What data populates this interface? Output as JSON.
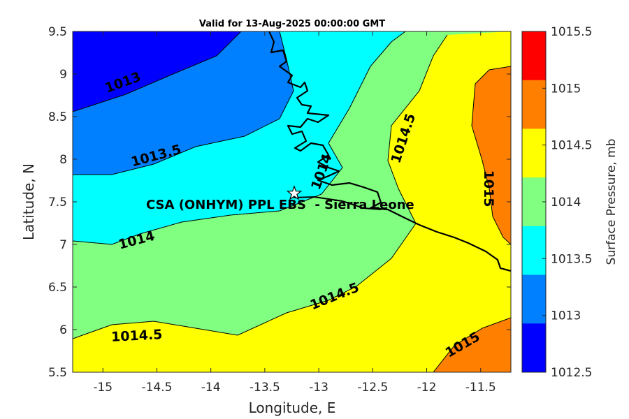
{
  "title": "Valid for 13-Aug-2025 00:00:00 GMT",
  "x_axis": {
    "label": "Longitude, E",
    "range": [
      -15.28,
      -11.22
    ],
    "ticks": [
      "-15",
      "-14.5",
      "-14",
      "-13.5",
      "-13",
      "-12.5",
      "-12",
      "-11.5"
    ],
    "tick_values": [
      -15,
      -14.5,
      -14,
      -13.5,
      -13,
      -12.5,
      -12,
      -11.5
    ]
  },
  "y_axis": {
    "label": "Latitude, N",
    "range": [
      5.5,
      9.5
    ],
    "ticks": [
      "5.5",
      "6",
      "6.5",
      "7",
      "7.5",
      "8",
      "8.5",
      "9",
      "9.5"
    ],
    "tick_values": [
      5.5,
      6,
      6.5,
      7,
      7.5,
      8,
      8.5,
      9,
      9.5
    ]
  },
  "colorbar": {
    "label": "Surface Pressure, mb",
    "ticks": [
      "1012.5",
      "1013",
      "1013.5",
      "1014",
      "1014.5",
      "1015",
      "1015.5"
    ],
    "levels": [
      1012.5,
      1013,
      1013.5,
      1014,
      1014.5,
      1015,
      1015.5
    ],
    "colors": [
      "#0000ff",
      "#0080ff",
      "#00ffff",
      "#80ff80",
      "#ffff00",
      "#ff8000",
      "#ff0000"
    ]
  },
  "contour_labels": [
    "1013",
    "1013.5",
    "1014",
    "1014",
    "1014.5",
    "1014.5",
    "1014.5",
    "1015",
    "1015"
  ],
  "site": {
    "label": "CSA (ONHYM) PPL EBS  - Sierra Leone",
    "lon": -13.22,
    "lat": 7.6,
    "marker": "star-icon"
  },
  "chart_data": {
    "type": "heatmap",
    "title": "Valid for 13-Aug-2025 00:00:00 GMT",
    "xlabel": "Longitude, E",
    "ylabel": "Latitude, N",
    "xlim": [
      -15.28,
      -11.22
    ],
    "ylim": [
      5.5,
      9.5
    ],
    "value_label": "Surface Pressure, mb",
    "value_range": [
      1012.5,
      1015.5
    ],
    "contour_levels": [
      1013,
      1013.5,
      1014,
      1014.5,
      1015
    ],
    "grid": false,
    "colorbar_position": "right"
  }
}
